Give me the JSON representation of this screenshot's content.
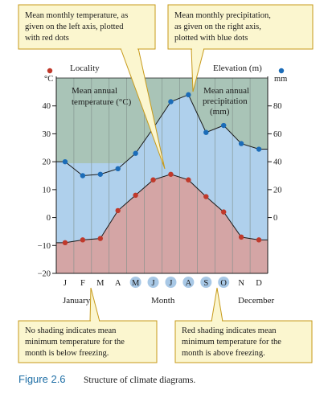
{
  "callouts": {
    "temperature": [
      "Mean monthly temperature, as",
      "given on the left axis, plotted",
      "with red dots"
    ],
    "precipitation": [
      "Mean monthly precipitation,",
      "as given on the right axis,",
      "plotted with blue dots"
    ],
    "no_shading": [
      "No shading indicates mean",
      "minimum temperature for the",
      "month is below freezing."
    ],
    "red_shading": [
      "Red shading indicates mean",
      "minimum temperature for the",
      "month is above freezing."
    ]
  },
  "labels": {
    "locality": "Locality",
    "elevation": "Elevation (m)",
    "left_unit": "°C",
    "right_unit": "mm",
    "mean_temp": [
      "Mean annual",
      "temperature (°C)"
    ],
    "mean_precip": [
      "Mean annual",
      "precipitation",
      "(mm)"
    ],
    "january": "January",
    "month": "Month",
    "december": "December"
  },
  "caption": {
    "number": "Figure 2.6",
    "text": "Structure of climate diagrams."
  },
  "colors": {
    "precip_fill": "#afd0ec",
    "temp_fill": "#d4a5a5",
    "gray_band": "#a9c4b7",
    "temp_dot": "#c0392b",
    "precip_dot": "#1b6cb8",
    "highlight_letters": "#a8c8e6",
    "callout_fill": "#fbf6cf",
    "callout_border": "#c79a1a"
  },
  "chart_data": {
    "type": "line",
    "categories": [
      "J",
      "F",
      "M",
      "A",
      "M",
      "J",
      "J",
      "A",
      "S",
      "O",
      "N",
      "D"
    ],
    "series": [
      {
        "values": [
          -9,
          -8,
          -7.5,
          2.5,
          8,
          13.5,
          15.5,
          13.5,
          7.5,
          2,
          -7,
          -8
        ]
      },
      {
        "values": [
          40,
          30,
          31,
          35,
          46,
          64,
          83,
          88,
          61,
          66,
          53,
          49
        ]
      }
    ],
    "left_axis": {
      "ticks": [
        -20,
        -10,
        0,
        10,
        20,
        30,
        40
      ],
      "range": [
        -20,
        50
      ]
    },
    "right_axis": {
      "ticks": [
        0,
        20,
        40,
        60,
        80
      ],
      "range": [
        -40,
        100
      ]
    },
    "month_labels": [
      "J",
      "F",
      "M",
      "A",
      "M",
      "J",
      "J",
      "A",
      "S",
      "O",
      "N",
      "D"
    ],
    "highlighted_months": [
      4,
      5,
      6,
      7,
      8,
      9
    ]
  }
}
